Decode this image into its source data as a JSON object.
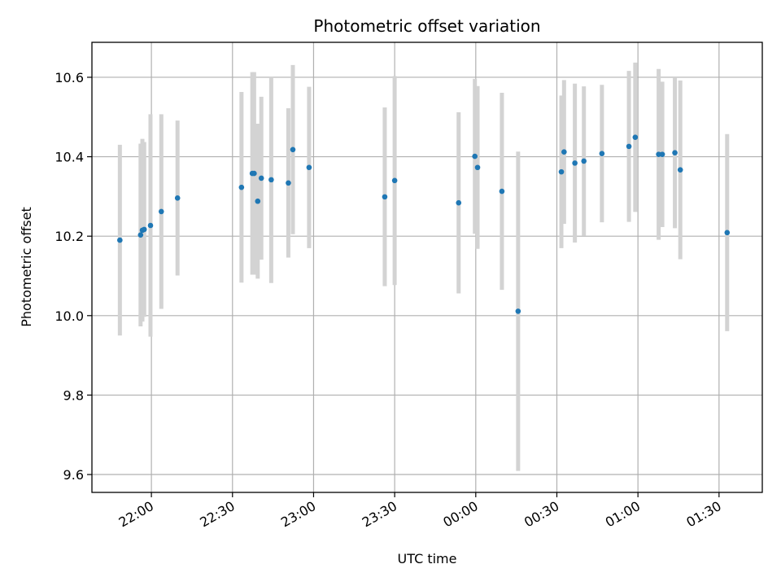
{
  "chart_data": {
    "type": "scatter",
    "title": "Photometric offset variation",
    "xlabel": "UTC time",
    "ylabel": "Photometric offset",
    "x_unit": "UTC time (HH:MM, spanning midnight)",
    "xlim": [
      "21:48",
      "23:59:59+01:46"
    ],
    "xlim_minutes_note": "x values below are clock times; times after midnight are on the following day",
    "x_ticks": [
      "22:00",
      "22:30",
      "23:00",
      "23:30",
      "00:00",
      "00:30",
      "01:00",
      "01:30"
    ],
    "ylim": [
      9.555,
      10.688
    ],
    "y_ticks": [
      9.6,
      9.8,
      10.0,
      10.2,
      10.4,
      10.6
    ],
    "y_tick_labels": [
      "9.6",
      "9.8",
      "10.0",
      "10.2",
      "10.4",
      "10.6"
    ],
    "grid": true,
    "colors": {
      "point": "#1f77b4",
      "errorbar": "#d3d3d3",
      "grid": "#b0b0b0"
    },
    "points": [
      {
        "x": "21:48:20",
        "y": 10.19,
        "err": 0.24
      },
      {
        "x": "21:56:00",
        "y": 10.203,
        "err": 0.23
      },
      {
        "x": "21:56:40",
        "y": 10.215,
        "err": 0.23
      },
      {
        "x": "21:57:20",
        "y": 10.217,
        "err": 0.22
      },
      {
        "x": "21:59:40",
        "y": 10.227,
        "err": 0.28
      },
      {
        "x": "22:03:40",
        "y": 10.262,
        "err": 0.245
      },
      {
        "x": "22:09:40",
        "y": 10.296,
        "err": 0.195
      },
      {
        "x": "22:33:20",
        "y": 10.323,
        "err": 0.24
      },
      {
        "x": "22:37:20",
        "y": 10.358,
        "err": 0.255
      },
      {
        "x": "22:38:00",
        "y": 10.358,
        "err": 0.255
      },
      {
        "x": "22:39:20",
        "y": 10.288,
        "err": 0.195
      },
      {
        "x": "22:40:40",
        "y": 10.346,
        "err": 0.205
      },
      {
        "x": "22:44:20",
        "y": 10.342,
        "err": 0.26
      },
      {
        "x": "22:50:40",
        "y": 10.334,
        "err": 0.188
      },
      {
        "x": "22:52:20",
        "y": 10.418,
        "err": 0.213
      },
      {
        "x": "22:58:20",
        "y": 10.373,
        "err": 0.203
      },
      {
        "x": "23:26:20",
        "y": 10.299,
        "err": 0.225
      },
      {
        "x": "23:30:00",
        "y": 10.34,
        "err": 0.263
      },
      {
        "x": "23:53:40",
        "y": 10.284,
        "err": 0.228
      },
      {
        "x": "23:59:40",
        "y": 10.401,
        "err": 0.195
      },
      {
        "x": "00:00:40",
        "y": 10.373,
        "err": 0.205
      },
      {
        "x": "00:09:40",
        "y": 10.313,
        "err": 0.248
      },
      {
        "x": "00:15:40",
        "y": 10.011,
        "err": 0.402
      },
      {
        "x": "00:31:40",
        "y": 10.362,
        "err": 0.192
      },
      {
        "x": "00:32:40",
        "y": 10.412,
        "err": 0.181
      },
      {
        "x": "00:36:40",
        "y": 10.384,
        "err": 0.2
      },
      {
        "x": "00:40:00",
        "y": 10.389,
        "err": 0.188
      },
      {
        "x": "00:46:40",
        "y": 10.408,
        "err": 0.173
      },
      {
        "x": "00:56:40",
        "y": 10.426,
        "err": 0.19
      },
      {
        "x": "00:59:00",
        "y": 10.449,
        "err": 0.188
      },
      {
        "x": "01:07:40",
        "y": 10.406,
        "err": 0.215
      },
      {
        "x": "01:09:00",
        "y": 10.406,
        "err": 0.183
      },
      {
        "x": "01:13:40",
        "y": 10.41,
        "err": 0.19
      },
      {
        "x": "01:15:40",
        "y": 10.367,
        "err": 0.225
      },
      {
        "x": "01:33:00",
        "y": 10.209,
        "err": 0.248
      }
    ]
  }
}
